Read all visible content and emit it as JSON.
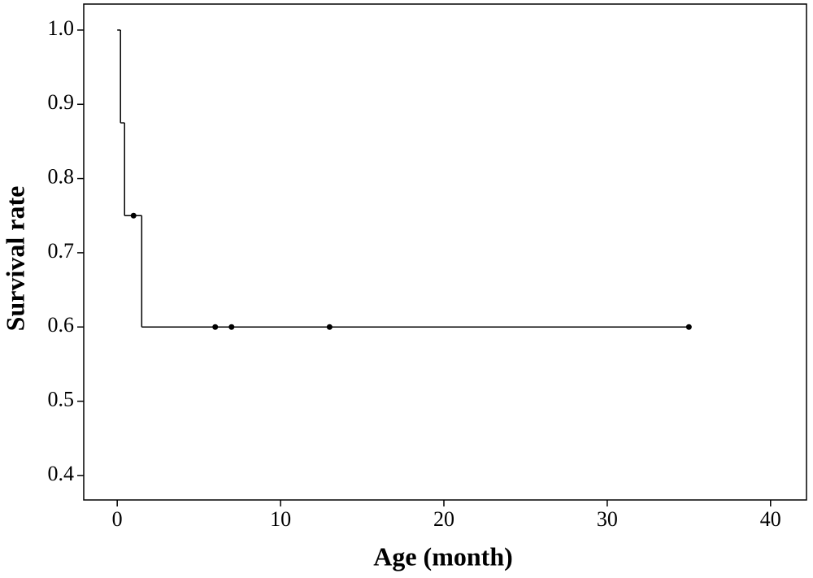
{
  "chart_data": {
    "type": "step",
    "xlabel": "Age (month)",
    "ylabel": "Survival rate",
    "curve": {
      "x": [
        0,
        0.2,
        0.45,
        1.5,
        35
      ],
      "values": [
        1.0,
        0.875,
        0.75,
        0.6,
        0.6
      ],
      "color": "#000000"
    },
    "censored": {
      "x": [
        1,
        6,
        7,
        13,
        35
      ],
      "values": [
        0.75,
        0.6,
        0.6,
        0.6,
        0.6
      ],
      "color": "#000000"
    },
    "xlim": [
      -2.05,
      42.2
    ],
    "ylim": [
      0.367,
      1.035
    ],
    "xticks": [
      0,
      10,
      20,
      30,
      40
    ],
    "yticks": [
      0.4,
      0.5,
      0.6,
      0.7,
      0.8,
      0.9,
      {
        "value": 1,
        "label": "1.0"
      }
    ],
    "grid": false
  }
}
